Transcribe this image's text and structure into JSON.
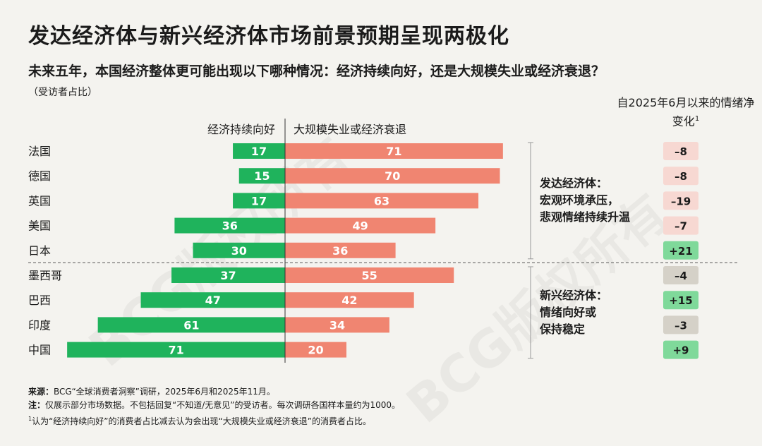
{
  "title": "发达经济体与新兴经济体市场前景预期呈现两极化",
  "question": "未来五年，本国经济整体更可能出现以下哪种情况：经济持续向好，还是大规模失业或经济衰退？",
  "unit_note": "（受访者占比）",
  "net_change_header": "自2025年6月以来的情绪净变化",
  "net_change_footnote_mark": "1",
  "watermark": "BCG版权所有",
  "chart_data": {
    "type": "bar",
    "orientation": "horizontal-diverging",
    "categories": [
      "法国",
      "德国",
      "英国",
      "美国",
      "日本",
      "墨西哥",
      "巴西",
      "印度",
      "中国"
    ],
    "series": [
      {
        "name": "经济持续向好",
        "values": [
          17,
          15,
          17,
          36,
          30,
          37,
          47,
          61,
          71
        ],
        "color": "#1fb35c"
      },
      {
        "name": "大规模失业或经济衰退",
        "values": [
          71,
          70,
          63,
          49,
          36,
          55,
          42,
          34,
          20
        ],
        "color": "#f08571"
      }
    ],
    "net_change": [
      "–8",
      "–8",
      "–19",
      "–7",
      "+21",
      "–4",
      "+15",
      "–3",
      "+9"
    ],
    "net_change_colors": [
      "#f7d8d2",
      "#f7d8d2",
      "#f7d8d2",
      "#f7d8d2",
      "#7fd99a",
      "#d5d1c8",
      "#7fd99a",
      "#d5d1c8",
      "#7fd99a"
    ],
    "groups": [
      {
        "lines": [
          "发达经济体：",
          "宏观环境承压，",
          "悲观情绪持续升温"
        ],
        "start": 0,
        "end": 4
      },
      {
        "lines": [
          "新兴经济体：",
          "情绪向好或",
          "保持稳定"
        ],
        "start": 5,
        "end": 8
      }
    ]
  },
  "notes": {
    "source_label": "来源：",
    "source": "BCG“全球消费者洞察”调研，2025年6月和2025年11月。",
    "note_label": "注：",
    "note": "仅展示部分市场数据。不包括回复“不知道/无意见”的受访者。每次调研各国样本量约为1000。",
    "footnote_mark": "1",
    "footnote": "认为“经济持续向好”的消费者占比减去认为会出现“大规模失业或经济衰退”的消费者占比。"
  }
}
